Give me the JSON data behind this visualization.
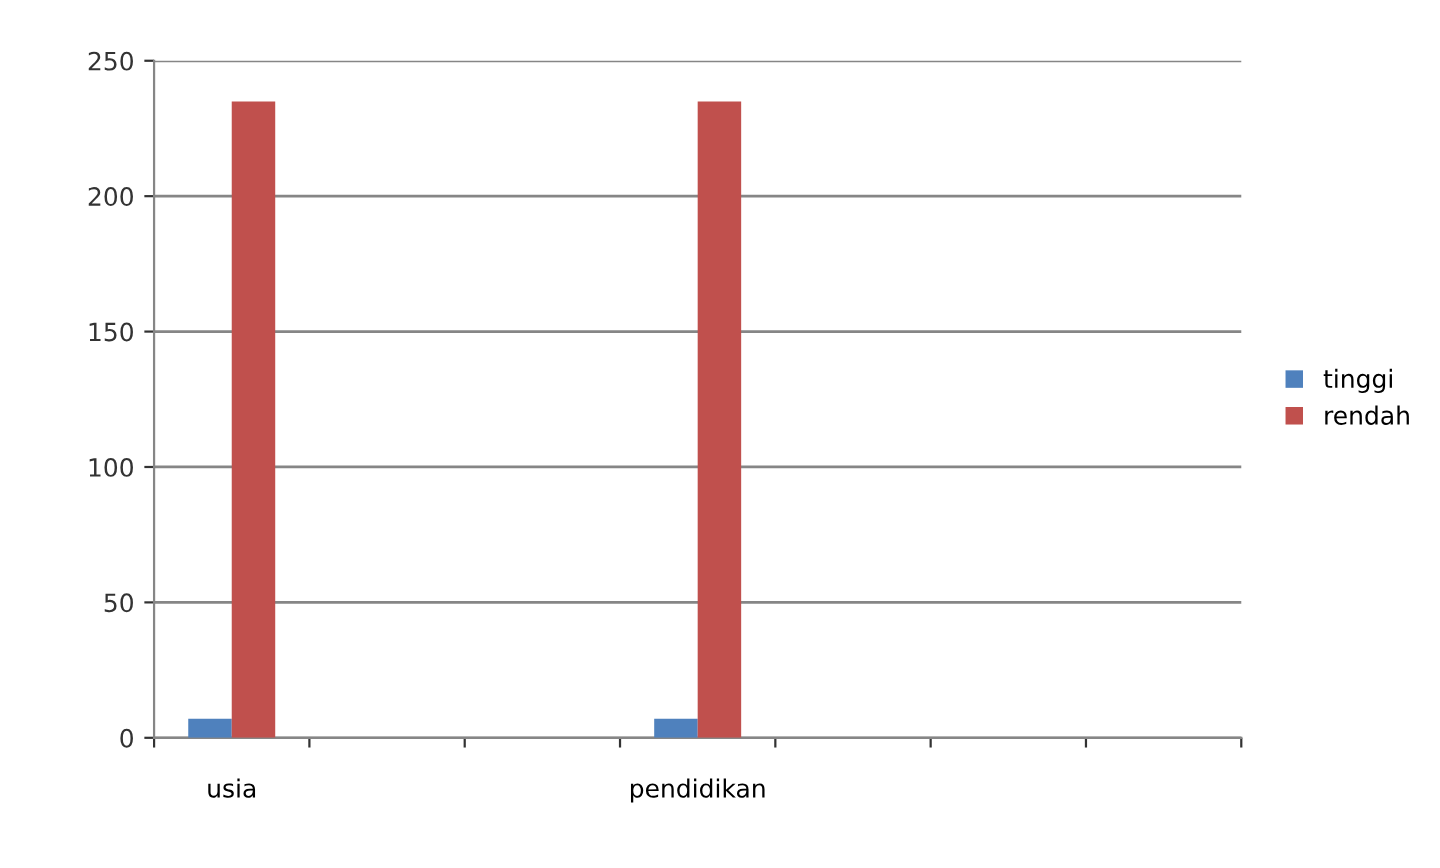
{
  "chart_data": {
    "type": "bar",
    "categories": [
      "usia",
      null,
      null,
      "pendidikan",
      null,
      null,
      null
    ],
    "series": [
      {
        "name": "tinggi",
        "color": "#4f81bd",
        "values": [
          7,
          null,
          null,
          7,
          null,
          null,
          null
        ]
      },
      {
        "name": "rendah",
        "color": "#c0504d",
        "values": [
          235,
          null,
          null,
          235,
          null,
          null,
          null
        ]
      }
    ],
    "ylim": [
      0,
      250
    ],
    "yticks": [
      0,
      50,
      100,
      150,
      200,
      250
    ],
    "grid": "y",
    "legend": "right"
  }
}
